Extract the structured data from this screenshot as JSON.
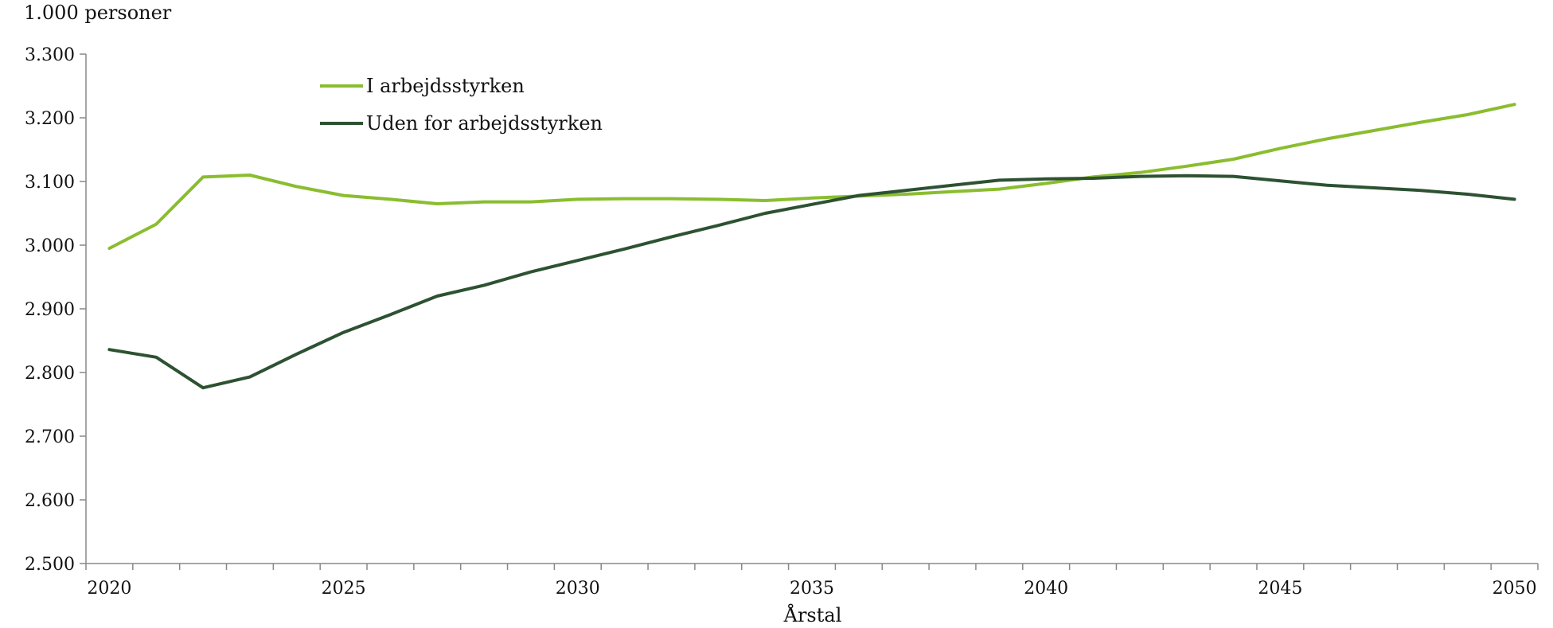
{
  "chart_data": {
    "type": "line",
    "title": "",
    "ylabel": "1.000 personer",
    "xlabel": "Årstal",
    "ylim": [
      2500,
      3300
    ],
    "yticks": [
      2500,
      2600,
      2700,
      2800,
      2900,
      3000,
      3100,
      3200,
      3300
    ],
    "ytick_labels": [
      "2.500",
      "2.600",
      "2.700",
      "2.800",
      "2.900",
      "3.000",
      "3.100",
      "3.200",
      "3.300"
    ],
    "xlim": [
      2019.5,
      2050.5
    ],
    "xticks": [
      2020,
      2025,
      2030,
      2035,
      2040,
      2045,
      2050
    ],
    "xtick_labels": [
      "2020",
      "2025",
      "2030",
      "2035",
      "2040",
      "2045",
      "2050"
    ],
    "grid": false,
    "legend_position": "top-left",
    "x": [
      2020,
      2021,
      2022,
      2023,
      2024,
      2025,
      2026,
      2027,
      2028,
      2029,
      2030,
      2031,
      2032,
      2033,
      2034,
      2035,
      2036,
      2037,
      2038,
      2039,
      2040,
      2041,
      2042,
      2043,
      2044,
      2045,
      2046,
      2047,
      2048,
      2049,
      2050
    ],
    "series": [
      {
        "name": "I arbejdsstyrken",
        "color": "#8abd2f",
        "values": [
          2995,
          3033,
          3107,
          3110,
          3092,
          3078,
          3072,
          3065,
          3068,
          3068,
          3072,
          3073,
          3073,
          3072,
          3070,
          3074,
          3077,
          3080,
          3084,
          3088,
          3097,
          3107,
          3114,
          3124,
          3135,
          3152,
          3167,
          3180,
          3193,
          3205,
          3221
        ]
      },
      {
        "name": "Uden for arbejdsstyrken",
        "color": "#2d5232",
        "values": [
          2836,
          2824,
          2776,
          2793,
          2829,
          2863,
          2891,
          2920,
          2937,
          2958,
          2976,
          2994,
          3013,
          3031,
          3050,
          3064,
          3078,
          3086,
          3094,
          3102,
          3104,
          3105,
          3108,
          3109,
          3108,
          3101,
          3094,
          3090,
          3086,
          3080,
          3072
        ]
      }
    ]
  }
}
